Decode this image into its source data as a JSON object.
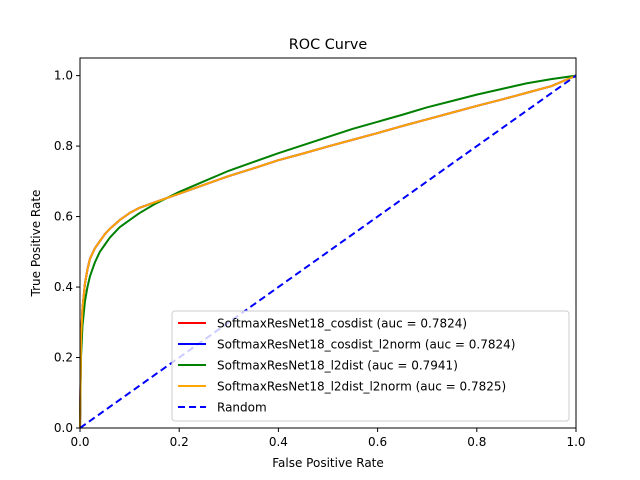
{
  "chart_data": {
    "type": "line",
    "title": "ROC Curve",
    "xlabel": "False Positive Rate",
    "ylabel": "True Positive Rate",
    "xlim": [
      0,
      1
    ],
    "ylim": [
      0,
      1.05
    ],
    "x_ticks": [
      "0.0",
      "0.2",
      "0.4",
      "0.6",
      "0.8",
      "1.0"
    ],
    "y_ticks": [
      "0.0",
      "0.2",
      "0.4",
      "0.6",
      "0.8",
      "1.0"
    ],
    "grid": false,
    "legend_position": "bottom-right",
    "series": [
      {
        "name": "SoftmaxResNet18_cosdist (auc = 0.7824)",
        "color": "#ff0000",
        "dash": "solid",
        "x": [
          0,
          0.002,
          0.005,
          0.01,
          0.015,
          0.02,
          0.03,
          0.04,
          0.05,
          0.06,
          0.08,
          0.1,
          0.12,
          0.15,
          0.2,
          0.25,
          0.3,
          0.35,
          0.4,
          0.45,
          0.5,
          0.55,
          0.6,
          0.65,
          0.7,
          0.75,
          0.8,
          0.85,
          0.9,
          0.95,
          1.0
        ],
        "y": [
          0,
          0.25,
          0.34,
          0.41,
          0.45,
          0.48,
          0.51,
          0.53,
          0.55,
          0.565,
          0.59,
          0.61,
          0.625,
          0.64,
          0.665,
          0.69,
          0.715,
          0.737,
          0.76,
          0.779,
          0.799,
          0.818,
          0.837,
          0.857,
          0.876,
          0.895,
          0.914,
          0.932,
          0.951,
          0.97,
          1.0
        ]
      },
      {
        "name": "SoftmaxResNet18_cosdist_l2norm (auc = 0.7824)",
        "color": "#0000ff",
        "dash": "solid",
        "x": [
          0,
          0.002,
          0.005,
          0.01,
          0.015,
          0.02,
          0.03,
          0.04,
          0.05,
          0.06,
          0.08,
          0.1,
          0.12,
          0.15,
          0.2,
          0.25,
          0.3,
          0.35,
          0.4,
          0.45,
          0.5,
          0.55,
          0.6,
          0.65,
          0.7,
          0.75,
          0.8,
          0.85,
          0.9,
          0.95,
          1.0
        ],
        "y": [
          0,
          0.25,
          0.34,
          0.41,
          0.45,
          0.48,
          0.51,
          0.53,
          0.55,
          0.565,
          0.59,
          0.61,
          0.625,
          0.64,
          0.665,
          0.69,
          0.715,
          0.737,
          0.76,
          0.779,
          0.799,
          0.818,
          0.837,
          0.857,
          0.876,
          0.895,
          0.914,
          0.932,
          0.951,
          0.97,
          1.0
        ]
      },
      {
        "name": "SoftmaxResNet18_l2dist (auc = 0.7941)",
        "color": "#008000",
        "dash": "solid",
        "x": [
          0,
          0.002,
          0.005,
          0.01,
          0.015,
          0.02,
          0.03,
          0.04,
          0.05,
          0.06,
          0.08,
          0.1,
          0.12,
          0.15,
          0.2,
          0.25,
          0.3,
          0.35,
          0.4,
          0.45,
          0.5,
          0.55,
          0.6,
          0.65,
          0.7,
          0.75,
          0.8,
          0.85,
          0.9,
          0.95,
          1.0
        ],
        "y": [
          0,
          0.2,
          0.29,
          0.36,
          0.4,
          0.43,
          0.47,
          0.5,
          0.52,
          0.54,
          0.57,
          0.59,
          0.61,
          0.635,
          0.67,
          0.7,
          0.73,
          0.755,
          0.78,
          0.803,
          0.826,
          0.849,
          0.869,
          0.889,
          0.91,
          0.928,
          0.946,
          0.962,
          0.978,
          0.99,
          1.0
        ]
      },
      {
        "name": "SoftmaxResNet18_l2dist_l2norm (auc = 0.7825)",
        "color": "#ffa500",
        "dash": "solid",
        "x": [
          0,
          0.002,
          0.005,
          0.01,
          0.015,
          0.02,
          0.03,
          0.04,
          0.05,
          0.06,
          0.08,
          0.1,
          0.12,
          0.15,
          0.2,
          0.25,
          0.3,
          0.35,
          0.4,
          0.45,
          0.5,
          0.55,
          0.6,
          0.65,
          0.7,
          0.75,
          0.8,
          0.85,
          0.9,
          0.95,
          1.0
        ],
        "y": [
          0,
          0.25,
          0.34,
          0.41,
          0.45,
          0.48,
          0.51,
          0.53,
          0.55,
          0.565,
          0.59,
          0.61,
          0.625,
          0.64,
          0.665,
          0.69,
          0.715,
          0.737,
          0.76,
          0.779,
          0.799,
          0.818,
          0.837,
          0.857,
          0.876,
          0.895,
          0.914,
          0.932,
          0.951,
          0.97,
          1.0
        ]
      },
      {
        "name": "Random",
        "color": "#0000ff",
        "dash": "dashed",
        "x": [
          0,
          1
        ],
        "y": [
          0,
          1
        ]
      }
    ]
  }
}
